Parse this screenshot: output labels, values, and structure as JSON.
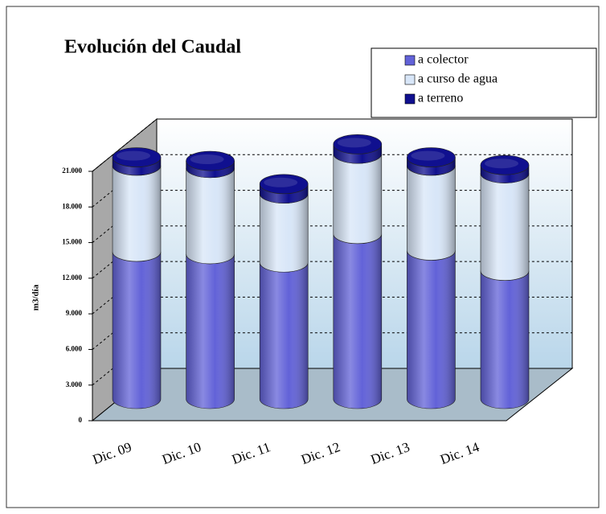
{
  "chart_data": {
    "type": "bar3d-stacked-cylinder",
    "title": "Evolución del Caudal",
    "y_label": "m3/día",
    "categories": [
      "Dic. 09",
      "Dic. 10",
      "Dic. 11",
      "Dic. 12",
      "Dic. 13",
      "Dic. 14"
    ],
    "series": [
      {
        "name": "a colector",
        "color": "#6262d8",
        "values": [
          12400,
          12200,
          11500,
          13900,
          12500,
          10800
        ]
      },
      {
        "name": "a curso de agua",
        "color": "#d8e6f8",
        "values": [
          7250,
          7250,
          5800,
          6750,
          7150,
          8200
        ]
      },
      {
        "name": "a terreno",
        "color": "#10108f",
        "values": [
          700,
          600,
          800,
          800,
          700,
          700
        ]
      }
    ],
    "ylim": [
      0,
      21000
    ],
    "yticks": [
      0,
      {
        "value": 3000,
        "label": "3.000"
      },
      {
        "value": 6000,
        "label": "6.000"
      },
      {
        "value": 9000,
        "label": "9.000"
      },
      {
        "value": 12000,
        "label": "12.000"
      },
      {
        "value": 15000,
        "label": "15.000"
      },
      {
        "value": 18000,
        "label": "18.000"
      },
      {
        "value": 21000,
        "label": "21.000"
      }
    ],
    "grid": true,
    "legend": "top-right"
  }
}
